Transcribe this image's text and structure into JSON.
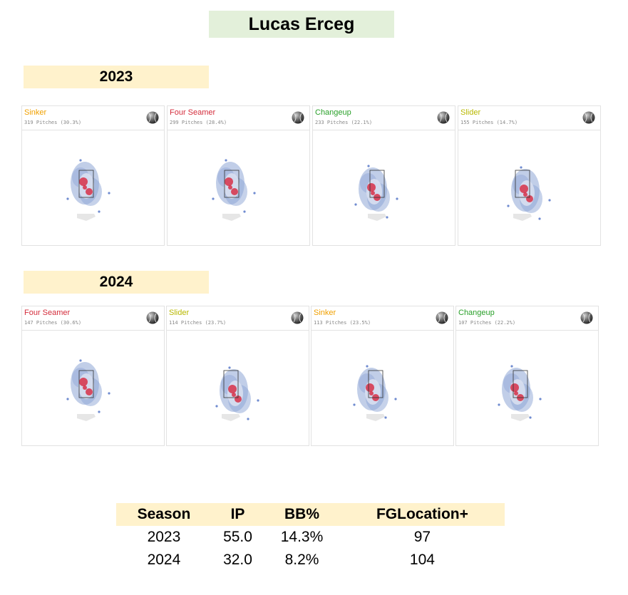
{
  "title": "Lucas Erceg",
  "years": [
    "2023",
    "2024"
  ],
  "chart_data": [
    {
      "type": "heatmap",
      "season": "2023",
      "panels": [
        {
          "pitch": "Sinker",
          "color": "#f0a000",
          "subtitle": "319 Pitches (30.3%)",
          "zone": "middle"
        },
        {
          "pitch": "Four Seamer",
          "color": "#d42d3c",
          "subtitle": "299 Pitches (28.4%)",
          "zone": "middle"
        },
        {
          "pitch": "Changeup",
          "color": "#2aa02a",
          "subtitle": "233 Pitches (22.1%)",
          "zone": "low"
        },
        {
          "pitch": "Slider",
          "color": "#b8b800",
          "subtitle": "155 Pitches (14.7%)",
          "zone": "low-arm-side"
        }
      ]
    },
    {
      "type": "heatmap",
      "season": "2024",
      "panels": [
        {
          "pitch": "Four Seamer",
          "color": "#d42d3c",
          "subtitle": "147 Pitches (30.6%)",
          "zone": "middle"
        },
        {
          "pitch": "Slider",
          "color": "#b8b800",
          "subtitle": "114 Pitches (23.7%)",
          "zone": "low-arm-side"
        },
        {
          "pitch": "Sinker",
          "color": "#f0a000",
          "subtitle": "113 Pitches (23.5%)",
          "zone": "low"
        },
        {
          "pitch": "Changeup",
          "color": "#2aa02a",
          "subtitle": "107 Pitches (22.2%)",
          "zone": "low"
        }
      ]
    },
    {
      "type": "table",
      "columns": [
        "Season",
        "IP",
        "BB%",
        "FGLocation+"
      ],
      "rows": [
        [
          "2023",
          "55.0",
          "14.3%",
          "97"
        ],
        [
          "2024",
          "32.0",
          "8.2%",
          "104"
        ]
      ]
    }
  ]
}
